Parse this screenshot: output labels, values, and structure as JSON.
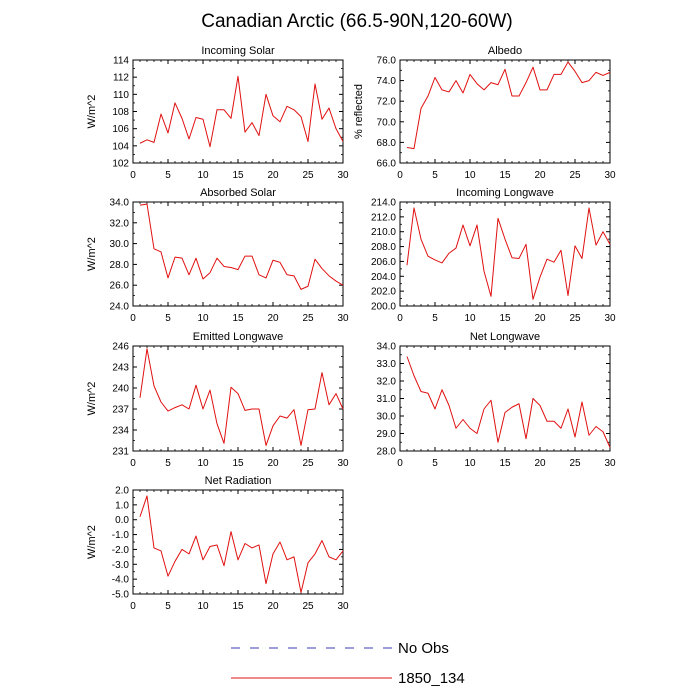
{
  "figure": {
    "title": "Canadian Arctic (66.5-90N,120-60W)"
  },
  "legend": [
    {
      "label": "No Obs",
      "color": "#3b3bb3",
      "dash": true
    },
    {
      "label": "1850_134",
      "color": "#e01010",
      "dash": false
    }
  ],
  "chart_data": [
    {
      "type": "line",
      "title": "Incoming Solar",
      "ylabel": "W/m^2",
      "xlim": [
        0,
        30
      ],
      "ylim": [
        102,
        114
      ],
      "xticks": [
        0,
        5,
        10,
        15,
        20,
        25,
        30
      ],
      "yticks": [
        102,
        104,
        106,
        108,
        110,
        112,
        114
      ],
      "ytick_labels": [
        "102",
        "104",
        "106",
        "108",
        "110",
        "112",
        "114"
      ],
      "x": [
        1,
        2,
        3,
        4,
        5,
        6,
        7,
        8,
        9,
        10,
        11,
        12,
        13,
        14,
        15,
        16,
        17,
        18,
        19,
        20,
        21,
        22,
        23,
        24,
        25,
        26,
        27,
        28,
        29,
        30
      ],
      "series": [
        {
          "name": "1850_134",
          "values": [
            104.3,
            104.7,
            104.4,
            107.7,
            105.5,
            109.0,
            107.2,
            104.8,
            107.3,
            107.1,
            103.9,
            108.2,
            108.2,
            107.2,
            112.1,
            105.6,
            106.7,
            105.2,
            110.0,
            107.5,
            106.8,
            108.6,
            108.2,
            107.4,
            104.5,
            111.2,
            107.1,
            108.4,
            106.0,
            104.5
          ]
        }
      ]
    },
    {
      "type": "line",
      "title": "Albedo",
      "ylabel": "% reflected",
      "xlim": [
        0,
        30
      ],
      "ylim": [
        66,
        76
      ],
      "xticks": [
        0,
        5,
        10,
        15,
        20,
        25,
        30
      ],
      "yticks": [
        66,
        68,
        70,
        72,
        74,
        76
      ],
      "ytick_labels": [
        "66.0",
        "68.0",
        "70.0",
        "72.0",
        "74.0",
        "76.0"
      ],
      "x": [
        1,
        2,
        3,
        4,
        5,
        6,
        7,
        8,
        9,
        10,
        11,
        12,
        13,
        14,
        15,
        16,
        17,
        18,
        19,
        20,
        21,
        22,
        23,
        24,
        25,
        26,
        27,
        28,
        29,
        30
      ],
      "series": [
        {
          "name": "1850_134",
          "values": [
            67.5,
            67.4,
            71.3,
            72.5,
            74.3,
            73.1,
            72.9,
            74.0,
            72.8,
            74.6,
            73.7,
            73.1,
            73.8,
            73.6,
            75.1,
            72.5,
            72.5,
            73.8,
            75.3,
            73.1,
            73.1,
            74.6,
            74.6,
            75.8,
            74.9,
            73.8,
            74.0,
            74.8,
            74.5,
            74.8
          ]
        }
      ]
    },
    {
      "type": "line",
      "title": "Absorbed Solar",
      "ylabel": "W/m^2",
      "xlim": [
        0,
        30
      ],
      "ylim": [
        24,
        34
      ],
      "xticks": [
        0,
        5,
        10,
        15,
        20,
        25,
        30
      ],
      "yticks": [
        24,
        26,
        28,
        30,
        32,
        34
      ],
      "ytick_labels": [
        "24.0",
        "26.0",
        "28.0",
        "30.0",
        "32.0",
        "34.0"
      ],
      "x": [
        1,
        2,
        3,
        4,
        5,
        6,
        7,
        8,
        9,
        10,
        11,
        12,
        13,
        14,
        15,
        16,
        17,
        18,
        19,
        20,
        21,
        22,
        23,
        24,
        25,
        26,
        27,
        28,
        29,
        30
      ],
      "series": [
        {
          "name": "1850_134",
          "values": [
            33.7,
            33.8,
            29.5,
            29.2,
            26.7,
            28.7,
            28.6,
            27.0,
            28.6,
            26.6,
            27.2,
            28.6,
            27.8,
            27.7,
            27.5,
            28.8,
            28.8,
            27.0,
            26.7,
            28.4,
            28.2,
            27.0,
            26.9,
            25.6,
            25.9,
            28.5,
            27.6,
            26.9,
            26.4,
            26.0
          ]
        }
      ]
    },
    {
      "type": "line",
      "title": "Incoming Longwave",
      "ylabel": "",
      "xlim": [
        0,
        30
      ],
      "ylim": [
        200,
        214
      ],
      "xticks": [
        0,
        5,
        10,
        15,
        20,
        25,
        30
      ],
      "yticks": [
        200,
        202,
        204,
        206,
        208,
        210,
        212,
        214
      ],
      "ytick_labels": [
        "200.0",
        "202.0",
        "204.0",
        "206.0",
        "208.0",
        "210.0",
        "212.0",
        "214.0"
      ],
      "x": [
        1,
        2,
        3,
        4,
        5,
        6,
        7,
        8,
        9,
        10,
        11,
        12,
        13,
        14,
        15,
        16,
        17,
        18,
        19,
        20,
        21,
        22,
        23,
        24,
        25,
        26,
        27,
        28,
        29,
        30
      ],
      "series": [
        {
          "name": "1850_134",
          "values": [
            205.5,
            213.2,
            209.0,
            206.7,
            206.2,
            205.8,
            207.1,
            207.8,
            210.9,
            208.1,
            210.9,
            204.7,
            201.3,
            211.8,
            209.0,
            206.5,
            206.4,
            208.3,
            200.9,
            203.9,
            206.3,
            205.9,
            207.5,
            201.4,
            208.1,
            206.4,
            213.2,
            208.2,
            210.0,
            208.3
          ]
        }
      ]
    },
    {
      "type": "line",
      "title": "Emitted Longwave",
      "ylabel": "W/m^2",
      "xlim": [
        0,
        30
      ],
      "ylim": [
        231,
        246
      ],
      "xticks": [
        0,
        5,
        10,
        15,
        20,
        25,
        30
      ],
      "yticks": [
        231,
        234,
        237,
        240,
        243,
        246
      ],
      "ytick_labels": [
        "231",
        "234",
        "237",
        "240",
        "243",
        "246"
      ],
      "x": [
        1,
        2,
        3,
        4,
        5,
        6,
        7,
        8,
        9,
        10,
        11,
        12,
        13,
        14,
        15,
        16,
        17,
        18,
        19,
        20,
        21,
        22,
        23,
        24,
        25,
        26,
        27,
        28,
        29,
        30
      ],
      "series": [
        {
          "name": "1850_134",
          "values": [
            238.6,
            245.6,
            240.3,
            238.0,
            236.7,
            237.2,
            237.6,
            237.0,
            240.4,
            237.0,
            239.7,
            234.9,
            232.1,
            240.1,
            239.2,
            236.8,
            237.0,
            237.0,
            231.8,
            234.6,
            236.0,
            235.7,
            236.9,
            231.8,
            236.9,
            237.0,
            242.2,
            237.6,
            239.2,
            237.0
          ]
        }
      ]
    },
    {
      "type": "line",
      "title": "Net Longwave",
      "ylabel": "",
      "xlim": [
        0,
        30
      ],
      "ylim": [
        28,
        34
      ],
      "xticks": [
        0,
        5,
        10,
        15,
        20,
        25,
        30
      ],
      "yticks": [
        28,
        29,
        30,
        31,
        32,
        33,
        34
      ],
      "ytick_labels": [
        "28.0",
        "29.0",
        "30.0",
        "31.0",
        "32.0",
        "33.0",
        "34.0"
      ],
      "x": [
        1,
        2,
        3,
        4,
        5,
        6,
        7,
        8,
        9,
        10,
        11,
        12,
        13,
        14,
        15,
        16,
        17,
        18,
        19,
        20,
        21,
        22,
        23,
        24,
        25,
        26,
        27,
        28,
        29,
        30
      ],
      "series": [
        {
          "name": "1850_134",
          "values": [
            33.4,
            32.3,
            31.4,
            31.3,
            30.4,
            31.5,
            30.6,
            29.3,
            29.8,
            29.3,
            29.0,
            30.4,
            30.9,
            28.5,
            30.2,
            30.5,
            30.7,
            28.7,
            31.0,
            30.6,
            29.7,
            29.7,
            29.3,
            30.4,
            28.8,
            30.8,
            28.9,
            29.4,
            29.1,
            28.2
          ]
        }
      ]
    },
    {
      "type": "line",
      "title": "Net Radiation",
      "ylabel": "W/m^2",
      "xlim": [
        0,
        30
      ],
      "ylim": [
        -5,
        2
      ],
      "xticks": [
        0,
        5,
        10,
        15,
        20,
        25,
        30
      ],
      "yticks": [
        -5,
        -4,
        -3,
        -2,
        -1,
        0,
        1,
        2
      ],
      "ytick_labels": [
        "-5.0",
        "-4.0",
        "-3.0",
        "-2.0",
        "-1.0",
        "0.0",
        "1.0",
        "2.0"
      ],
      "x": [
        1,
        2,
        3,
        4,
        5,
        6,
        7,
        8,
        9,
        10,
        11,
        12,
        13,
        14,
        15,
        16,
        17,
        18,
        19,
        20,
        21,
        22,
        23,
        24,
        25,
        26,
        27,
        28,
        29,
        30
      ],
      "series": [
        {
          "name": "1850_134",
          "values": [
            0.2,
            1.6,
            -1.9,
            -2.1,
            -3.8,
            -2.8,
            -2.0,
            -2.3,
            -1.1,
            -2.7,
            -1.8,
            -1.7,
            -3.1,
            -0.8,
            -2.7,
            -1.6,
            -1.9,
            -1.7,
            -4.3,
            -2.3,
            -1.5,
            -2.7,
            -2.5,
            -4.9,
            -2.9,
            -2.3,
            -1.4,
            -2.5,
            -2.7,
            -2.1
          ]
        }
      ]
    }
  ]
}
